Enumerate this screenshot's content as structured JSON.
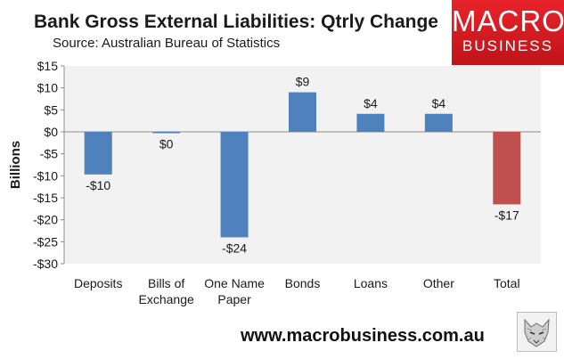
{
  "header": {
    "title": "Bank Gross External Liabilities: Qtrly Change",
    "subtitle": "Source: Australian Bureau of Statistics"
  },
  "logo": {
    "line1": "MACRO",
    "line2": "BUSINESS",
    "color": "#e11f26"
  },
  "footer": {
    "website": "www.macrobusiness.com.au",
    "badge_icon": "wolf-icon"
  },
  "chart_data": {
    "type": "bar",
    "categories": [
      "Deposits",
      "Bills of\nExchange",
      "One Name\nPaper",
      "Bonds",
      "Loans",
      "Other",
      "Total"
    ],
    "values": [
      -9.7,
      -0.3,
      -24,
      9,
      4.1,
      4.1,
      -16.5
    ],
    "data_labels": [
      "-$10",
      "$0",
      "-$24",
      "$9",
      "$4",
      "$4",
      "-$17"
    ],
    "colors": [
      "#4f81bd",
      "#4f81bd",
      "#4f81bd",
      "#4f81bd",
      "#4f81bd",
      "#4f81bd",
      "#c0504d"
    ],
    "ylabel": "Billions",
    "xlabel": "",
    "ylim": [
      -30,
      15
    ],
    "yticks": [
      15,
      10,
      5,
      0,
      -5,
      -10,
      -15,
      -20,
      -25,
      -30
    ],
    "ytick_labels": [
      "$15",
      "$10",
      "$5",
      "$0",
      "-$5",
      "-$10",
      "-$15",
      "-$20",
      "-$25",
      "-$30"
    ],
    "grid": false,
    "plot_background": "#f2f2f2",
    "legend": "none"
  }
}
